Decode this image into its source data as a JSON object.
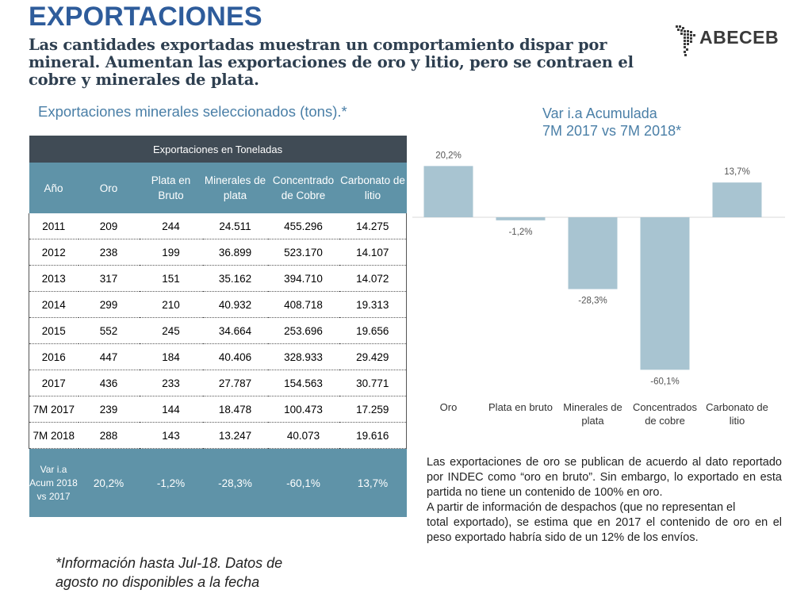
{
  "header": {
    "title": "EXPORTACIONES",
    "subtitle": "Las cantidades exportadas muestran un comportamiento dispar por mineral. Aumentan las exportaciones de oro y litio, pero se contraen el cobre y minerales de plata.",
    "logo_text": "ABECEB"
  },
  "table_title": "Exportaciones minerales seleccionados (tons).*",
  "table": {
    "band": "Exportaciones en Toneladas",
    "columns": [
      "Año",
      "Oro",
      "Plata en Bruto",
      "Minerales de plata",
      "Concentrado de Cobre",
      "Carbonato de litio"
    ],
    "rows": [
      [
        "2011",
        "209",
        "244",
        "24.511",
        "455.296",
        "14.275"
      ],
      [
        "2012",
        "238",
        "199",
        "36.899",
        "523.170",
        "14.107"
      ],
      [
        "2013",
        "317",
        "151",
        "35.162",
        "394.710",
        "14.072"
      ],
      [
        "2014",
        "299",
        "210",
        "40.932",
        "408.718",
        "19.313"
      ],
      [
        "2015",
        "552",
        "245",
        "34.664",
        "253.696",
        "19.656"
      ],
      [
        "2016",
        "447",
        "184",
        "40.406",
        "328.933",
        "29.429"
      ],
      [
        "2017",
        "436",
        "233",
        "27.787",
        "154.563",
        "30.771"
      ],
      [
        "7M 2017",
        "239",
        "144",
        "18.478",
        "100.473",
        "17.259"
      ],
      [
        "7M 2018",
        "288",
        "143",
        "13.247",
        "40.073",
        "19.616"
      ]
    ],
    "var_row": [
      "Var i.a Acum 2018 vs 2017",
      "20,2%",
      "-1,2%",
      "-28,3%",
      "-60,1%",
      "13,7%"
    ]
  },
  "chart_title": "Var i.a Acumulada\n7M 2017 vs 7M 2018*",
  "colors": {
    "title": "#2e5c9b",
    "accent": "#4a7fa7",
    "table_header": "#5f93a8",
    "table_band": "#404b55",
    "bar": "#a8c4d1"
  },
  "chart_data": {
    "type": "bar",
    "title": "Var i.a Acumulada 7M 2017 vs 7M 2018*",
    "categories": [
      "Oro",
      "Plata en bruto",
      "Minerales de plata",
      "Concentrados de cobre",
      "Carbonato de litio"
    ],
    "category_lines": [
      [
        "Oro"
      ],
      [
        "Plata en bruto"
      ],
      [
        "Minerales de",
        "plata"
      ],
      [
        "Concentrados",
        "de cobre"
      ],
      [
        "Carbonato de",
        "litio"
      ]
    ],
    "values": [
      20.2,
      -1.2,
      -28.3,
      -60.1,
      13.7
    ],
    "value_labels": [
      "20,2%",
      "-1,2%",
      "-28,3%",
      "-60,1%",
      "13,7%"
    ],
    "ylim": [
      -60.1,
      20.2
    ],
    "grid": false,
    "xlabel": "",
    "ylabel": ""
  },
  "note": {
    "p1": "Las exportaciones de oro se publican de acuerdo al dato reportado por INDEC como “oro en bruto”. Sin embargo, lo exportado en esta partida no tiene un contenido de 100% en oro.",
    "p2": "A partir de información de despachos (que no representan el",
    "p3": "total exportado), se estima que en 2017 el contenido de oro en el peso exportado habría sido de un 12% de los envíos."
  },
  "footnote": "*Información hasta Jul-18. Datos de agosto no disponibles a la fecha"
}
